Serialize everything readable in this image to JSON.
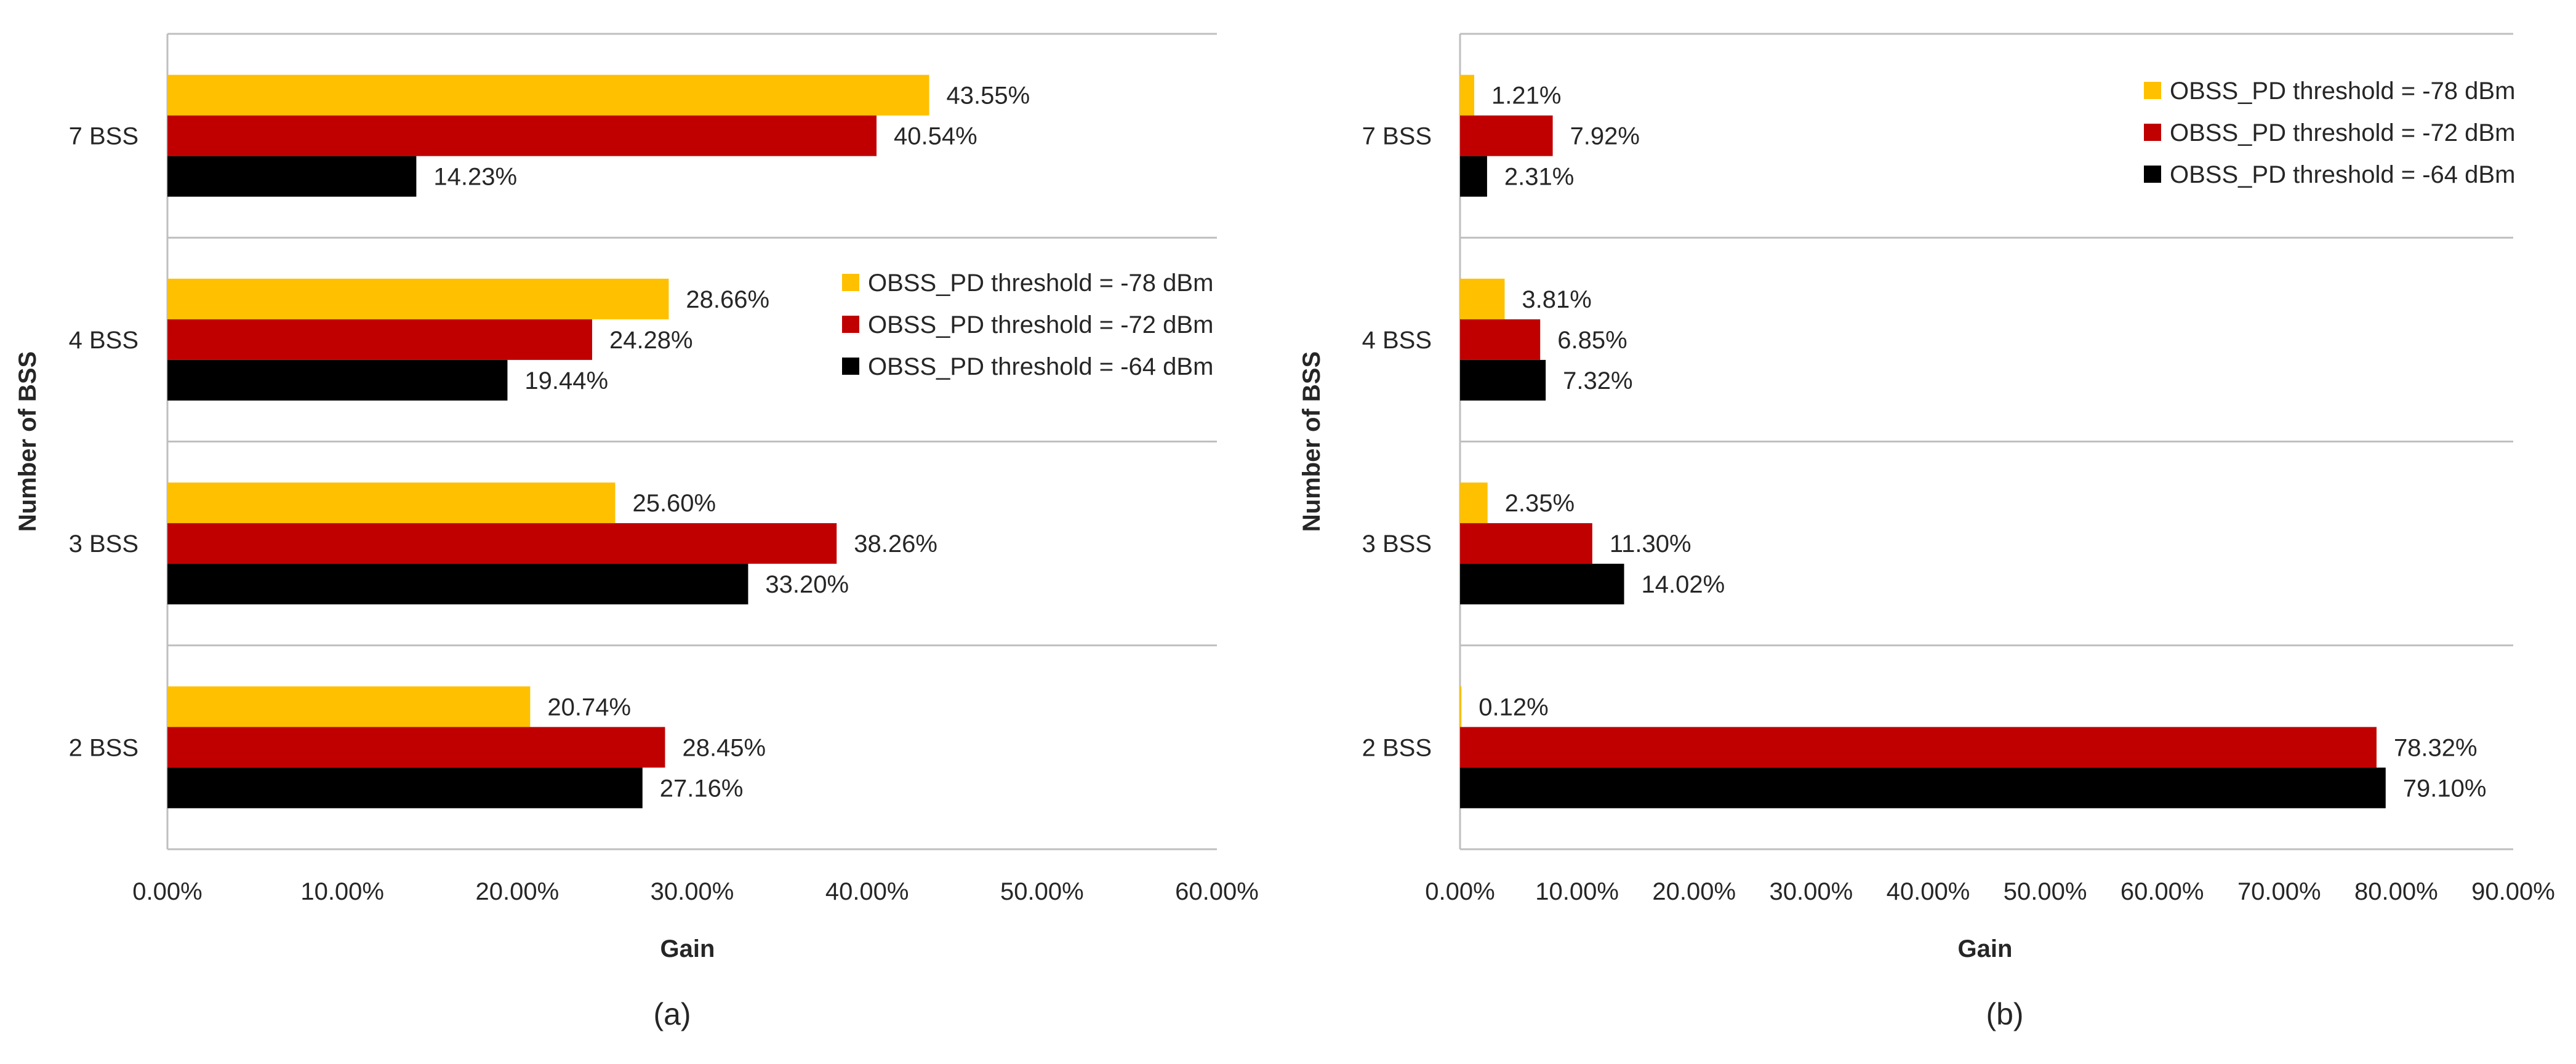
{
  "chart_data": [
    {
      "type": "bar",
      "orientation": "horizontal",
      "panel_label": "(a)",
      "xlabel": "Gain",
      "ylabel": "Number of BSS",
      "categories": [
        "7 BSS",
        "4 BSS",
        "3 BSS",
        "2 BSS"
      ],
      "xlim": [
        0,
        60
      ],
      "x_ticks": [
        "0.00%",
        "10.00%",
        "20.00%",
        "30.00%",
        "40.00%",
        "50.00%",
        "60.00%"
      ],
      "legend_position": "middle-right",
      "series": [
        {
          "name": "OBSS_PD threshold = -78 dBm",
          "color": "#FFC000",
          "values": [
            43.55,
            28.66,
            25.6,
            20.74
          ],
          "labels": [
            "43.55%",
            "28.66%",
            "25.60%",
            "20.74%"
          ]
        },
        {
          "name": "OBSS_PD threshold = -72 dBm",
          "color": "#C00000",
          "values": [
            40.54,
            24.28,
            38.26,
            28.45
          ],
          "labels": [
            "40.54%",
            "24.28%",
            "38.26%",
            "28.45%"
          ]
        },
        {
          "name": "OBSS_PD threshold = -64 dBm",
          "color": "#000000",
          "values": [
            14.23,
            19.44,
            33.2,
            27.16
          ],
          "labels": [
            "14.23%",
            "19.44%",
            "33.20%",
            "27.16%"
          ]
        }
      ]
    },
    {
      "type": "bar",
      "orientation": "horizontal",
      "panel_label": "(b)",
      "xlabel": "Gain",
      "ylabel": "Number of BSS",
      "categories": [
        "7 BSS",
        "4 BSS",
        "3 BSS",
        "2 BSS"
      ],
      "xlim": [
        0,
        90
      ],
      "x_ticks": [
        "0.00%",
        "10.00%",
        "20.00%",
        "30.00%",
        "40.00%",
        "50.00%",
        "60.00%",
        "70.00%",
        "80.00%",
        "90.00%"
      ],
      "legend_position": "top-right",
      "series": [
        {
          "name": "OBSS_PD threshold = -78 dBm",
          "color": "#FFC000",
          "values": [
            1.21,
            3.81,
            2.35,
            0.12
          ],
          "labels": [
            "1.21%",
            "3.81%",
            "2.35%",
            "0.12%"
          ]
        },
        {
          "name": "OBSS_PD threshold = -72 dBm",
          "color": "#C00000",
          "values": [
            7.92,
            6.85,
            11.3,
            78.32
          ],
          "labels": [
            "7.92%",
            "6.85%",
            "11.30%",
            "78.32%"
          ]
        },
        {
          "name": "OBSS_PD threshold = -64 dBm",
          "color": "#000000",
          "values": [
            2.31,
            7.32,
            14.02,
            79.1
          ],
          "labels": [
            "2.31%",
            "7.32%",
            "14.02%",
            "79.10%"
          ]
        }
      ]
    }
  ]
}
